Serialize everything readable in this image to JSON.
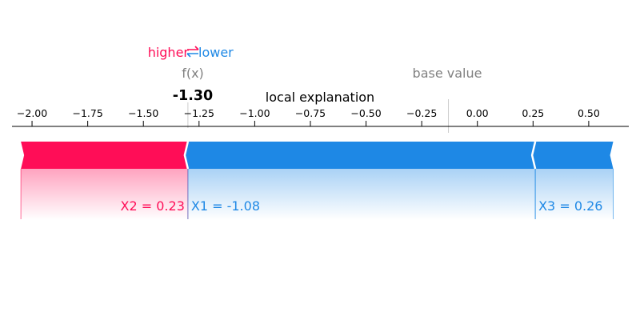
{
  "chart_data": {
    "type": "force",
    "title": "local explanation",
    "legend": {
      "higher": "higher",
      "lower": "lower",
      "higher_color": "#ff0d57",
      "lower_color": "#1e88e5"
    },
    "fx_label": "f(x)",
    "fx_value": -1.3,
    "fx_display": "-1.30",
    "base_value_label": "base value",
    "base_value": -0.13,
    "xlim": [
      -2.09,
      0.68
    ],
    "ticks": [
      -2.0,
      -1.75,
      -1.5,
      -1.25,
      -1.0,
      -0.75,
      -0.5,
      -0.25,
      0.0,
      0.25,
      0.5
    ],
    "tick_labels": [
      "−2.00",
      "−1.75",
      "−1.50",
      "−1.25",
      "−1.00",
      "−0.75",
      "−0.50",
      "−0.25",
      "0.00",
      "0.25",
      "0.50"
    ],
    "features": [
      {
        "name": "X2",
        "label": "X2 = 0.23",
        "effect": "higher",
        "start": -2.05,
        "end": -1.3,
        "color": "#ff0d57"
      },
      {
        "name": "X1",
        "label": "X1 = -1.08",
        "effect": "lower",
        "start": -1.3,
        "end": 0.26,
        "color": "#1e88e5"
      },
      {
        "name": "X3",
        "label": "X3 = 0.26",
        "effect": "lower",
        "start": 0.26,
        "end": 0.61,
        "color": "#1e88e5"
      }
    ]
  }
}
